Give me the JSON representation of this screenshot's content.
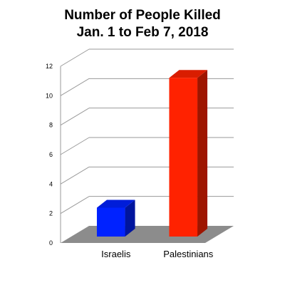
{
  "chart_data": {
    "type": "bar",
    "title": "Number of People Killed",
    "subtitle": "Jan. 1 to Feb 7, 2018",
    "categories": [
      "Israelis",
      "Palestinians"
    ],
    "values": [
      2,
      11
    ],
    "bar_colors": [
      "#0022ff",
      "#ff2200"
    ],
    "ylim": [
      0,
      12
    ],
    "yticks": [
      0,
      2,
      4,
      6,
      8,
      10,
      12
    ],
    "grid": true,
    "three_d": true,
    "xlabel": "",
    "ylabel": ""
  }
}
